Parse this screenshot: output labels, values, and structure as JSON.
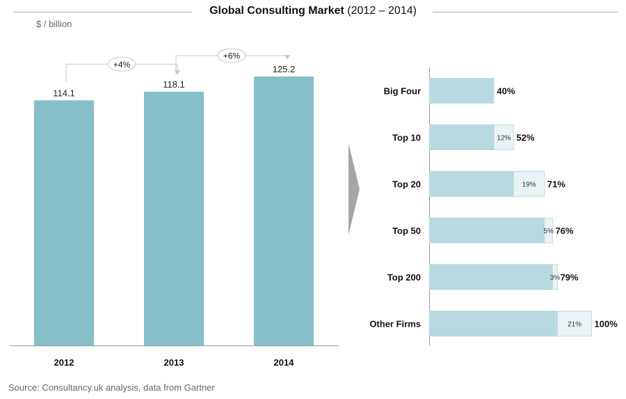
{
  "header": {
    "title_bold": "Global Consulting Market",
    "title_rest": " (2012 – 2014)",
    "unit": "$ / billion"
  },
  "footer": {
    "source": "Source: Consultancy.uk analysis, data from Gartner"
  },
  "colors": {
    "bar": "#86bfca",
    "hbar_base": "#b8d9e0",
    "hbar_increment": "#e9f3f5",
    "hbar_increment_border": "#c8dde2",
    "axis": "#9a9a9a",
    "arrow": "#a6a6a6",
    "connector": "#c8c8c8"
  },
  "chart_data": [
    {
      "type": "bar",
      "categories": [
        "2012",
        "2013",
        "2014"
      ],
      "values": [
        114.1,
        118.1,
        125.2
      ],
      "value_labels": [
        "114.1",
        "118.1",
        "125.2"
      ],
      "ylabel": "$ / billion",
      "ylim": [
        0,
        125.2
      ],
      "grid": false,
      "growth_annotations": [
        {
          "from": "2012",
          "to": "2013",
          "label": "+4%"
        },
        {
          "from": "2013",
          "to": "2014",
          "label": "+6%"
        }
      ]
    },
    {
      "type": "bar",
      "orientation": "horizontal",
      "stacked": true,
      "categories": [
        "Big Four",
        "Top 10",
        "Top 20",
        "Top 50",
        "Top 200",
        "Other Firms"
      ],
      "series": [
        {
          "values": [
            40,
            40,
            52,
            71,
            76,
            79
          ]
        },
        {
          "values": [
            0,
            12,
            19,
            5,
            3,
            21
          ]
        }
      ],
      "increment_labels": [
        "",
        "12%",
        "19%",
        "5%",
        "3%",
        "21%"
      ],
      "cumulative_labels": [
        "40%",
        "52%",
        "71%",
        "76%",
        "79%",
        "100%"
      ],
      "xlim": [
        0,
        100
      ],
      "grid": false
    }
  ]
}
